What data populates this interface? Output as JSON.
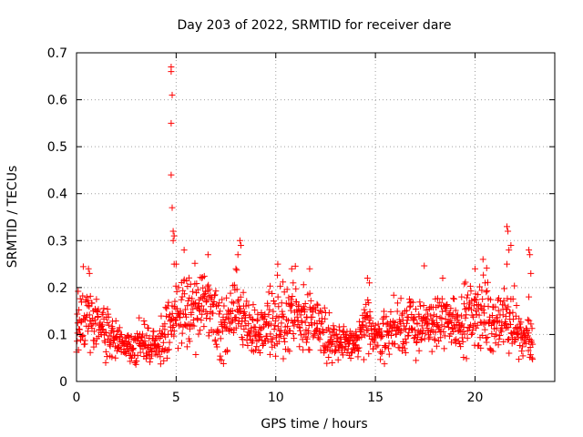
{
  "chart_data": {
    "type": "scatter",
    "title": "Day 203 of 2022, SRMTID for receiver dare",
    "xlabel": "GPS time / hours",
    "ylabel": "SRMTID / TECUs",
    "xlim": [
      0,
      24
    ],
    "ylim": [
      0,
      0.7
    ],
    "xticks": [
      0,
      5,
      10,
      15,
      20
    ],
    "yticks": [
      0,
      0.1,
      0.2,
      0.3,
      0.4,
      0.5,
      0.6,
      0.7
    ],
    "xtick_labels": [
      "0",
      "5",
      "10",
      "15",
      "20"
    ],
    "ytick_labels": [
      "0",
      "0.1",
      "0.2",
      "0.3",
      "0.4",
      "0.5",
      "0.6",
      "0.7"
    ],
    "grid": true,
    "marker": "+",
    "series_color": "#ff0000",
    "x_extent": [
      0,
      22.9
    ],
    "trend": [
      {
        "x": 0.0,
        "y": 0.12
      },
      {
        "x": 0.5,
        "y": 0.14
      },
      {
        "x": 1.0,
        "y": 0.13
      },
      {
        "x": 1.5,
        "y": 0.1
      },
      {
        "x": 2.0,
        "y": 0.09
      },
      {
        "x": 2.5,
        "y": 0.08
      },
      {
        "x": 3.0,
        "y": 0.075
      },
      {
        "x": 3.5,
        "y": 0.08
      },
      {
        "x": 4.0,
        "y": 0.085
      },
      {
        "x": 4.5,
        "y": 0.1
      },
      {
        "x": 5.0,
        "y": 0.14
      },
      {
        "x": 5.5,
        "y": 0.15
      },
      {
        "x": 6.0,
        "y": 0.16
      },
      {
        "x": 6.5,
        "y": 0.15
      },
      {
        "x": 7.0,
        "y": 0.12
      },
      {
        "x": 7.5,
        "y": 0.12
      },
      {
        "x": 8.0,
        "y": 0.15
      },
      {
        "x": 8.5,
        "y": 0.12
      },
      {
        "x": 9.0,
        "y": 0.1
      },
      {
        "x": 9.5,
        "y": 0.12
      },
      {
        "x": 10.0,
        "y": 0.12
      },
      {
        "x": 10.5,
        "y": 0.14
      },
      {
        "x": 11.0,
        "y": 0.14
      },
      {
        "x": 11.5,
        "y": 0.13
      },
      {
        "x": 12.0,
        "y": 0.12
      },
      {
        "x": 12.5,
        "y": 0.1
      },
      {
        "x": 13.0,
        "y": 0.09
      },
      {
        "x": 13.5,
        "y": 0.08
      },
      {
        "x": 14.0,
        "y": 0.075
      },
      {
        "x": 14.5,
        "y": 0.12
      },
      {
        "x": 15.0,
        "y": 0.095
      },
      {
        "x": 15.5,
        "y": 0.1
      },
      {
        "x": 16.0,
        "y": 0.11
      },
      {
        "x": 16.5,
        "y": 0.12
      },
      {
        "x": 17.0,
        "y": 0.12
      },
      {
        "x": 17.5,
        "y": 0.12
      },
      {
        "x": 18.0,
        "y": 0.12
      },
      {
        "x": 18.5,
        "y": 0.13
      },
      {
        "x": 19.0,
        "y": 0.13
      },
      {
        "x": 19.5,
        "y": 0.13
      },
      {
        "x": 20.0,
        "y": 0.14
      },
      {
        "x": 20.5,
        "y": 0.15
      },
      {
        "x": 21.0,
        "y": 0.12
      },
      {
        "x": 21.5,
        "y": 0.13
      },
      {
        "x": 22.0,
        "y": 0.12
      },
      {
        "x": 22.5,
        "y": 0.09
      },
      {
        "x": 22.9,
        "y": 0.08
      }
    ],
    "outliers": [
      {
        "x": 4.75,
        "y": 0.66
      },
      {
        "x": 4.75,
        "y": 0.67
      },
      {
        "x": 4.8,
        "y": 0.61
      },
      {
        "x": 4.75,
        "y": 0.55
      },
      {
        "x": 4.75,
        "y": 0.44
      },
      {
        "x": 4.8,
        "y": 0.37
      },
      {
        "x": 4.85,
        "y": 0.32
      },
      {
        "x": 4.9,
        "y": 0.31
      },
      {
        "x": 4.85,
        "y": 0.3
      },
      {
        "x": 4.9,
        "y": 0.25
      },
      {
        "x": 5.0,
        "y": 0.25
      },
      {
        "x": 5.4,
        "y": 0.28
      },
      {
        "x": 8.2,
        "y": 0.3
      },
      {
        "x": 8.25,
        "y": 0.29
      },
      {
        "x": 8.1,
        "y": 0.27
      },
      {
        "x": 6.6,
        "y": 0.27
      },
      {
        "x": 8.0,
        "y": 0.24
      },
      {
        "x": 10.1,
        "y": 0.25
      },
      {
        "x": 21.6,
        "y": 0.33
      },
      {
        "x": 21.65,
        "y": 0.32
      },
      {
        "x": 21.7,
        "y": 0.28
      },
      {
        "x": 21.6,
        "y": 0.25
      },
      {
        "x": 21.8,
        "y": 0.29
      },
      {
        "x": 22.7,
        "y": 0.28
      },
      {
        "x": 22.75,
        "y": 0.27
      },
      {
        "x": 22.8,
        "y": 0.23
      },
      {
        "x": 22.7,
        "y": 0.18
      },
      {
        "x": 20.4,
        "y": 0.26
      },
      {
        "x": 20.0,
        "y": 0.24
      },
      {
        "x": 14.6,
        "y": 0.22
      },
      {
        "x": 14.7,
        "y": 0.21
      },
      {
        "x": 0.6,
        "y": 0.24
      },
      {
        "x": 0.65,
        "y": 0.23
      },
      {
        "x": 11.7,
        "y": 0.24
      },
      {
        "x": 10.8,
        "y": 0.24
      }
    ]
  }
}
